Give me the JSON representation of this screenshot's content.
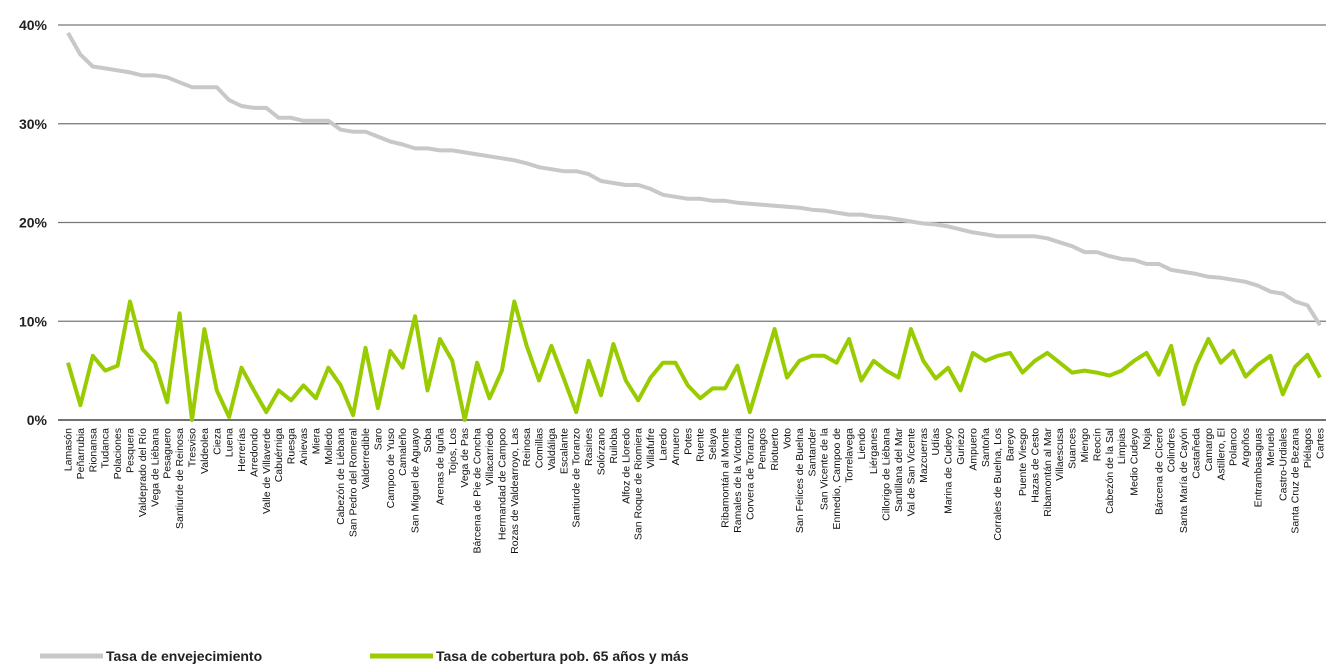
{
  "chart_data": {
    "type": "line",
    "title": "",
    "xlabel": "",
    "ylabel": "",
    "ylim": [
      0,
      40
    ],
    "yticks": [
      0,
      10,
      20,
      30,
      40
    ],
    "ytick_labels": [
      "0%",
      "10%",
      "20%",
      "30%",
      "40%"
    ],
    "grid": true,
    "legend": "bottom-left",
    "categories": [
      "Lamasón",
      "Peñarrubia",
      "Rionansa",
      "Tudanca",
      "Polaciones",
      "Pesquera",
      "Valdeprado del Río",
      "Vega de Liébana",
      "Pesaguero",
      "Santiurde de Reinosa",
      "Tresviso",
      "Valdeolea",
      "Cieza",
      "Luena",
      "Herrerías",
      "Arredondo",
      "Valle de Villaverde",
      "Cabuérniga",
      "Ruesga",
      "Anievas",
      "Miera",
      "Molledo",
      "Cabezón de Liébana",
      "San Pedro del Romeral",
      "Valderredible",
      "Saro",
      "Campoo de Yuso",
      "Camaleño",
      "San Miguel de Aguayo",
      "Soba",
      "Arenas de Iguña",
      "Tojos, Los",
      "Vega de Pas",
      "Bárcena de Pie de Concha",
      "Villacarriedo",
      "Hermandad de Campoo",
      "Rozas de Valdearroyo, Las",
      "Reinosa",
      "Comillas",
      "Valdáliga",
      "Escalante",
      "Santiurde de Toranzo",
      "Rasines",
      "Solórzano",
      "Ruiloba",
      "Alfoz de Lloredo",
      "San Roque de Riomiera",
      "Villafufre",
      "Laredo",
      "Arnuero",
      "Potes",
      "Ruente",
      "Selaya",
      "Ribamontán al Monte",
      "Ramales de la Victoria",
      "Corvera de Toranzo",
      "Penagos",
      "Riotuerto",
      "Voto",
      "San Felices de Buelna",
      "Santander",
      "San Vicente de la",
      "Enmedio, Campoo de",
      "Torrelavega",
      "Liendo",
      "Liérganes",
      "Cillorigo de Liébana",
      "Santillana del Mar",
      "Val de San Vicente",
      "Mazcuerras",
      "Udías",
      "Marina de Cudeyo",
      "Guriezo",
      "Ampuero",
      "Santoña",
      "Corrales de Buelna, Los",
      "Bareyo",
      "Puente Viesgo",
      "Hazas de Cesto",
      "Ribamontán al Mar",
      "Villaescusa",
      "Suances",
      "Miengo",
      "Reocín",
      "Cabezón de la Sal",
      "Limpias",
      "Medio Cudeyo",
      "Noja",
      "Bárcena de Cicero",
      "Colindres",
      "Santa María de Cayón",
      "Castañeda",
      "Camargo",
      "Astillero, El",
      "Polanco",
      "Argoños",
      "Entrambasaguas",
      "Meruelo",
      "Castro-Urdiales",
      "Santa Cruz de Bezana",
      "Piélagos",
      "Cartes"
    ],
    "series": [
      {
        "name": "Tasa de envejecimiento",
        "color": "#c8c8c8",
        "values": [
          39.2,
          37.0,
          35.8,
          35.6,
          35.4,
          35.2,
          34.9,
          34.9,
          34.7,
          34.2,
          33.7,
          33.7,
          33.7,
          32.4,
          31.8,
          31.6,
          31.6,
          30.6,
          30.6,
          30.3,
          30.3,
          30.3,
          29.4,
          29.2,
          29.2,
          28.7,
          28.2,
          27.9,
          27.5,
          27.5,
          27.3,
          27.3,
          27.1,
          26.9,
          26.7,
          26.5,
          26.3,
          26.0,
          25.6,
          25.4,
          25.2,
          25.2,
          24.9,
          24.2,
          24.0,
          23.8,
          23.8,
          23.4,
          22.8,
          22.6,
          22.4,
          22.4,
          22.2,
          22.2,
          22.0,
          21.9,
          21.8,
          21.7,
          21.6,
          21.5,
          21.3,
          21.2,
          21.0,
          20.8,
          20.8,
          20.6,
          20.5,
          20.3,
          20.1,
          19.9,
          19.8,
          19.6,
          19.3,
          19.0,
          18.8,
          18.6,
          18.6,
          18.6,
          18.6,
          18.4,
          18.0,
          17.6,
          17.0,
          17.0,
          16.6,
          16.3,
          16.2,
          15.8,
          15.8,
          15.2,
          15.0,
          14.8,
          14.5,
          14.4,
          14.2,
          14.0,
          13.6,
          13.0,
          12.8,
          12.0,
          11.6,
          9.6
        ]
      },
      {
        "name": "Tasa de cobertura pob. 65 años y más",
        "color": "#99cc00",
        "values": [
          5.8,
          1.5,
          6.5,
          5.0,
          5.5,
          12.0,
          7.2,
          5.8,
          1.8,
          10.8,
          0.0,
          9.2,
          3.0,
          0.3,
          5.3,
          3.0,
          0.8,
          3.0,
          2.0,
          3.5,
          2.2,
          5.3,
          3.5,
          0.5,
          7.3,
          1.2,
          7.0,
          5.3,
          10.5,
          3.0,
          8.2,
          6.0,
          0.0,
          5.8,
          2.2,
          5.0,
          12.0,
          7.5,
          4.0,
          7.5,
          4.2,
          0.8,
          6.0,
          2.5,
          7.7,
          4.0,
          2.0,
          4.3,
          5.8,
          5.8,
          3.5,
          2.2,
          3.2,
          3.2,
          5.5,
          0.8,
          5.0,
          9.2,
          4.3,
          6.0,
          6.5,
          6.5,
          5.8,
          8.2,
          4.0,
          6.0,
          5.0,
          4.3,
          9.2,
          6.0,
          4.2,
          5.3,
          3.0,
          6.8,
          6.0,
          6.5,
          6.8,
          4.8,
          6.0,
          6.8,
          5.8,
          4.8,
          5.0,
          4.8,
          4.5,
          5.0,
          6.0,
          6.8,
          4.6,
          7.5,
          1.6,
          5.5,
          8.2,
          5.8,
          7.0,
          4.4,
          5.6,
          6.5,
          2.6,
          5.4,
          6.6,
          4.3
        ]
      }
    ]
  }
}
